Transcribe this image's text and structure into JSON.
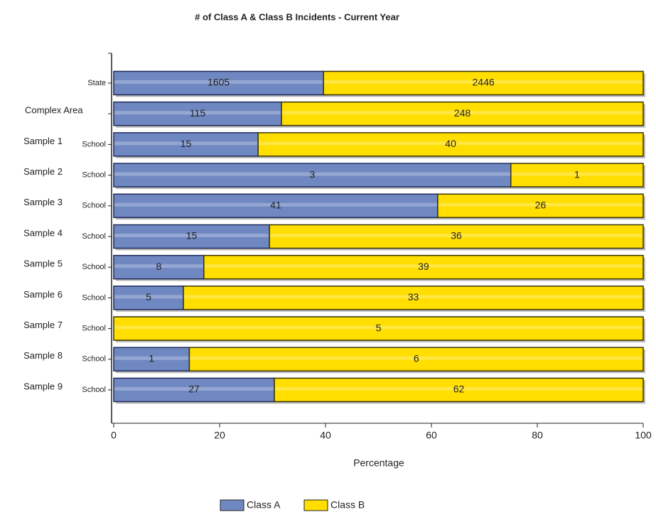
{
  "chart_data": {
    "type": "bar",
    "orientation": "horizontal",
    "stacking": "percent",
    "title": "# of Class A & Class B Incidents - Current Year",
    "x_label": "Percentage",
    "groups": [
      null,
      "Complex Area",
      "Sample 1",
      "Sample 2",
      "Sample 3",
      "Sample 4",
      "Sample 5",
      "Sample 6",
      "Sample 7",
      "Sample 8",
      "Sample 9"
    ],
    "categories": [
      "State",
      null,
      "School",
      "School",
      "School",
      "School",
      "School",
      "School",
      "School",
      "School",
      "School"
    ],
    "series": [
      {
        "name": "Class A",
        "color": "#7088c2",
        "values": [
          1605,
          115,
          15,
          3,
          41,
          15,
          8,
          5,
          0,
          1,
          27
        ]
      },
      {
        "name": "Class B",
        "color": "#ffde00",
        "values": [
          2446,
          248,
          40,
          1,
          26,
          36,
          39,
          33,
          5,
          6,
          62
        ]
      }
    ],
    "xlim": [
      0,
      100
    ],
    "xticks": [
      0,
      20,
      40,
      60,
      80,
      100
    ],
    "legend": "bottom"
  }
}
